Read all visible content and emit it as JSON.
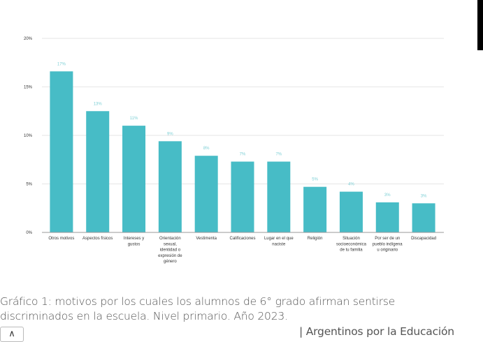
{
  "chart_data": {
    "type": "bar",
    "categories": [
      [
        "Otros motivos"
      ],
      [
        "Aspectos físicos"
      ],
      [
        "Intereses y",
        "gustos"
      ],
      [
        "Orientación",
        "sexual,",
        "identidad o",
        "expresión de",
        "género"
      ],
      [
        "Vestimenta"
      ],
      [
        "Calificaciones"
      ],
      [
        "Lugar en el que",
        "naciste"
      ],
      [
        "Religión"
      ],
      [
        "Situación",
        "socioeconómica",
        "de tu familia"
      ],
      [
        "Por ser de un",
        "pueblo indígena",
        "u originario"
      ],
      [
        "Discapacidad"
      ]
    ],
    "values": [
      16.6,
      12.5,
      11.0,
      9.4,
      7.9,
      7.3,
      7.3,
      4.7,
      4.2,
      3.1,
      3.0
    ],
    "data_labels": [
      "17%",
      "13%",
      "11%",
      "9%",
      "8%",
      "7%",
      "7%",
      "5%",
      "4%",
      "3%",
      "3%"
    ],
    "yticks": [
      0,
      5,
      10,
      15,
      20
    ],
    "ytick_labels": [
      "0%",
      "5%",
      "10%",
      "15%",
      "20%"
    ],
    "ylim": [
      0,
      20
    ],
    "grid": true,
    "bar_color": "#47bcc6",
    "label_color": "#7fd0d6"
  },
  "caption": {
    "line1": "Gráfico 1: motivos por los cuales los alumnos de 6° grado afirman sentirse",
    "line2": "discriminados en la escuela. Nivel primario. Año 2023."
  },
  "source": "| Argentinos por la Educación",
  "toggle_icon": "chevron-up-icon"
}
